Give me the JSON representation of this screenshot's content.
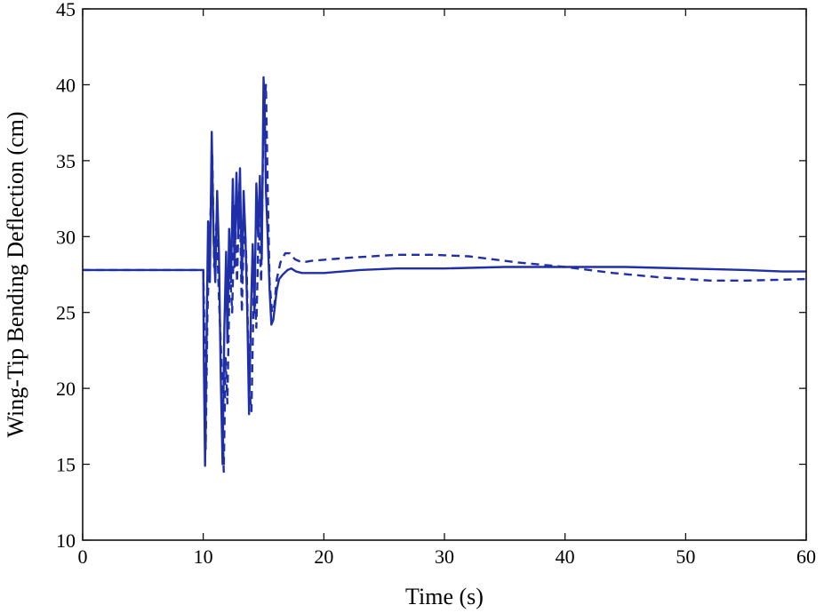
{
  "chart_data": {
    "type": "line",
    "title": "",
    "xlabel": "Time (s)",
    "ylabel": "Wing-Tip Bending Deflection (cm)",
    "xlim": [
      0,
      60
    ],
    "ylim": [
      10,
      45
    ],
    "xticks": [
      0,
      10,
      20,
      30,
      40,
      50,
      60
    ],
    "yticks": [
      10,
      15,
      20,
      25,
      30,
      35,
      40,
      45
    ],
    "grid": false,
    "legend": "none",
    "line_color": "#1f2fa8",
    "series": [
      {
        "style": "solid",
        "x": [
          0,
          10.0,
          10.05,
          10.15,
          10.25,
          10.4,
          10.55,
          10.7,
          10.85,
          11.0,
          11.15,
          11.3,
          11.45,
          11.6,
          11.75,
          11.9,
          12.0,
          12.15,
          12.3,
          12.45,
          12.6,
          12.75,
          12.9,
          13.05,
          13.2,
          13.35,
          13.5,
          13.65,
          13.8,
          13.95,
          14.1,
          14.25,
          14.4,
          14.55,
          14.7,
          14.85,
          15.0,
          15.1,
          15.2,
          15.35,
          15.5,
          15.65,
          15.8,
          15.95,
          16.1,
          16.3,
          16.6,
          17.0,
          17.3,
          17.7,
          18.2,
          20,
          23,
          26,
          30,
          35,
          40,
          45,
          50,
          55,
          58,
          60
        ],
        "y": [
          27.8,
          27.8,
          22.0,
          14.9,
          22.0,
          31.0,
          27.0,
          36.9,
          30.0,
          27.0,
          33.0,
          29.0,
          21.0,
          15.0,
          24.0,
          29.0,
          23.0,
          30.5,
          27.0,
          33.8,
          28.0,
          34.2,
          30.0,
          34.5,
          27.0,
          33.0,
          30.0,
          25.0,
          18.3,
          25.0,
          29.5,
          25.0,
          33.5,
          30.0,
          34.0,
          28.5,
          40.5,
          38.0,
          33.0,
          30.0,
          26.5,
          24.2,
          24.5,
          25.5,
          26.5,
          27.2,
          27.5,
          27.8,
          27.9,
          27.7,
          27.6,
          27.6,
          27.8,
          27.9,
          27.9,
          28.0,
          28.0,
          28.0,
          27.9,
          27.8,
          27.7,
          27.7
        ]
      },
      {
        "style": "dashed",
        "x": [
          0,
          10.0,
          10.1,
          10.2,
          10.35,
          10.55,
          10.75,
          10.9,
          11.1,
          11.3,
          11.5,
          11.7,
          11.85,
          12.0,
          12.2,
          12.4,
          12.6,
          12.8,
          13.0,
          13.2,
          13.4,
          13.6,
          13.8,
          14.0,
          14.2,
          14.4,
          14.6,
          14.8,
          15.0,
          15.2,
          15.35,
          15.5,
          15.7,
          15.9,
          16.1,
          16.4,
          16.8,
          17.2,
          17.6,
          18.2,
          19,
          22,
          26,
          29,
          32,
          36,
          40,
          44,
          48,
          52,
          55,
          60
        ],
        "y": [
          27.8,
          27.8,
          24.0,
          16.0,
          25.0,
          30.0,
          35.5,
          28.0,
          31.0,
          26.0,
          22.0,
          14.5,
          22.0,
          19.0,
          28.0,
          25.0,
          32.0,
          27.0,
          33.5,
          25.0,
          31.5,
          28.0,
          20.0,
          18.5,
          27.0,
          24.0,
          31.0,
          27.0,
          38.0,
          40.0,
          33.0,
          27.0,
          25.0,
          25.5,
          27.2,
          28.3,
          28.9,
          28.9,
          28.5,
          28.3,
          28.4,
          28.6,
          28.8,
          28.8,
          28.7,
          28.3,
          28.0,
          27.6,
          27.3,
          27.1,
          27.1,
          27.2
        ]
      }
    ]
  }
}
